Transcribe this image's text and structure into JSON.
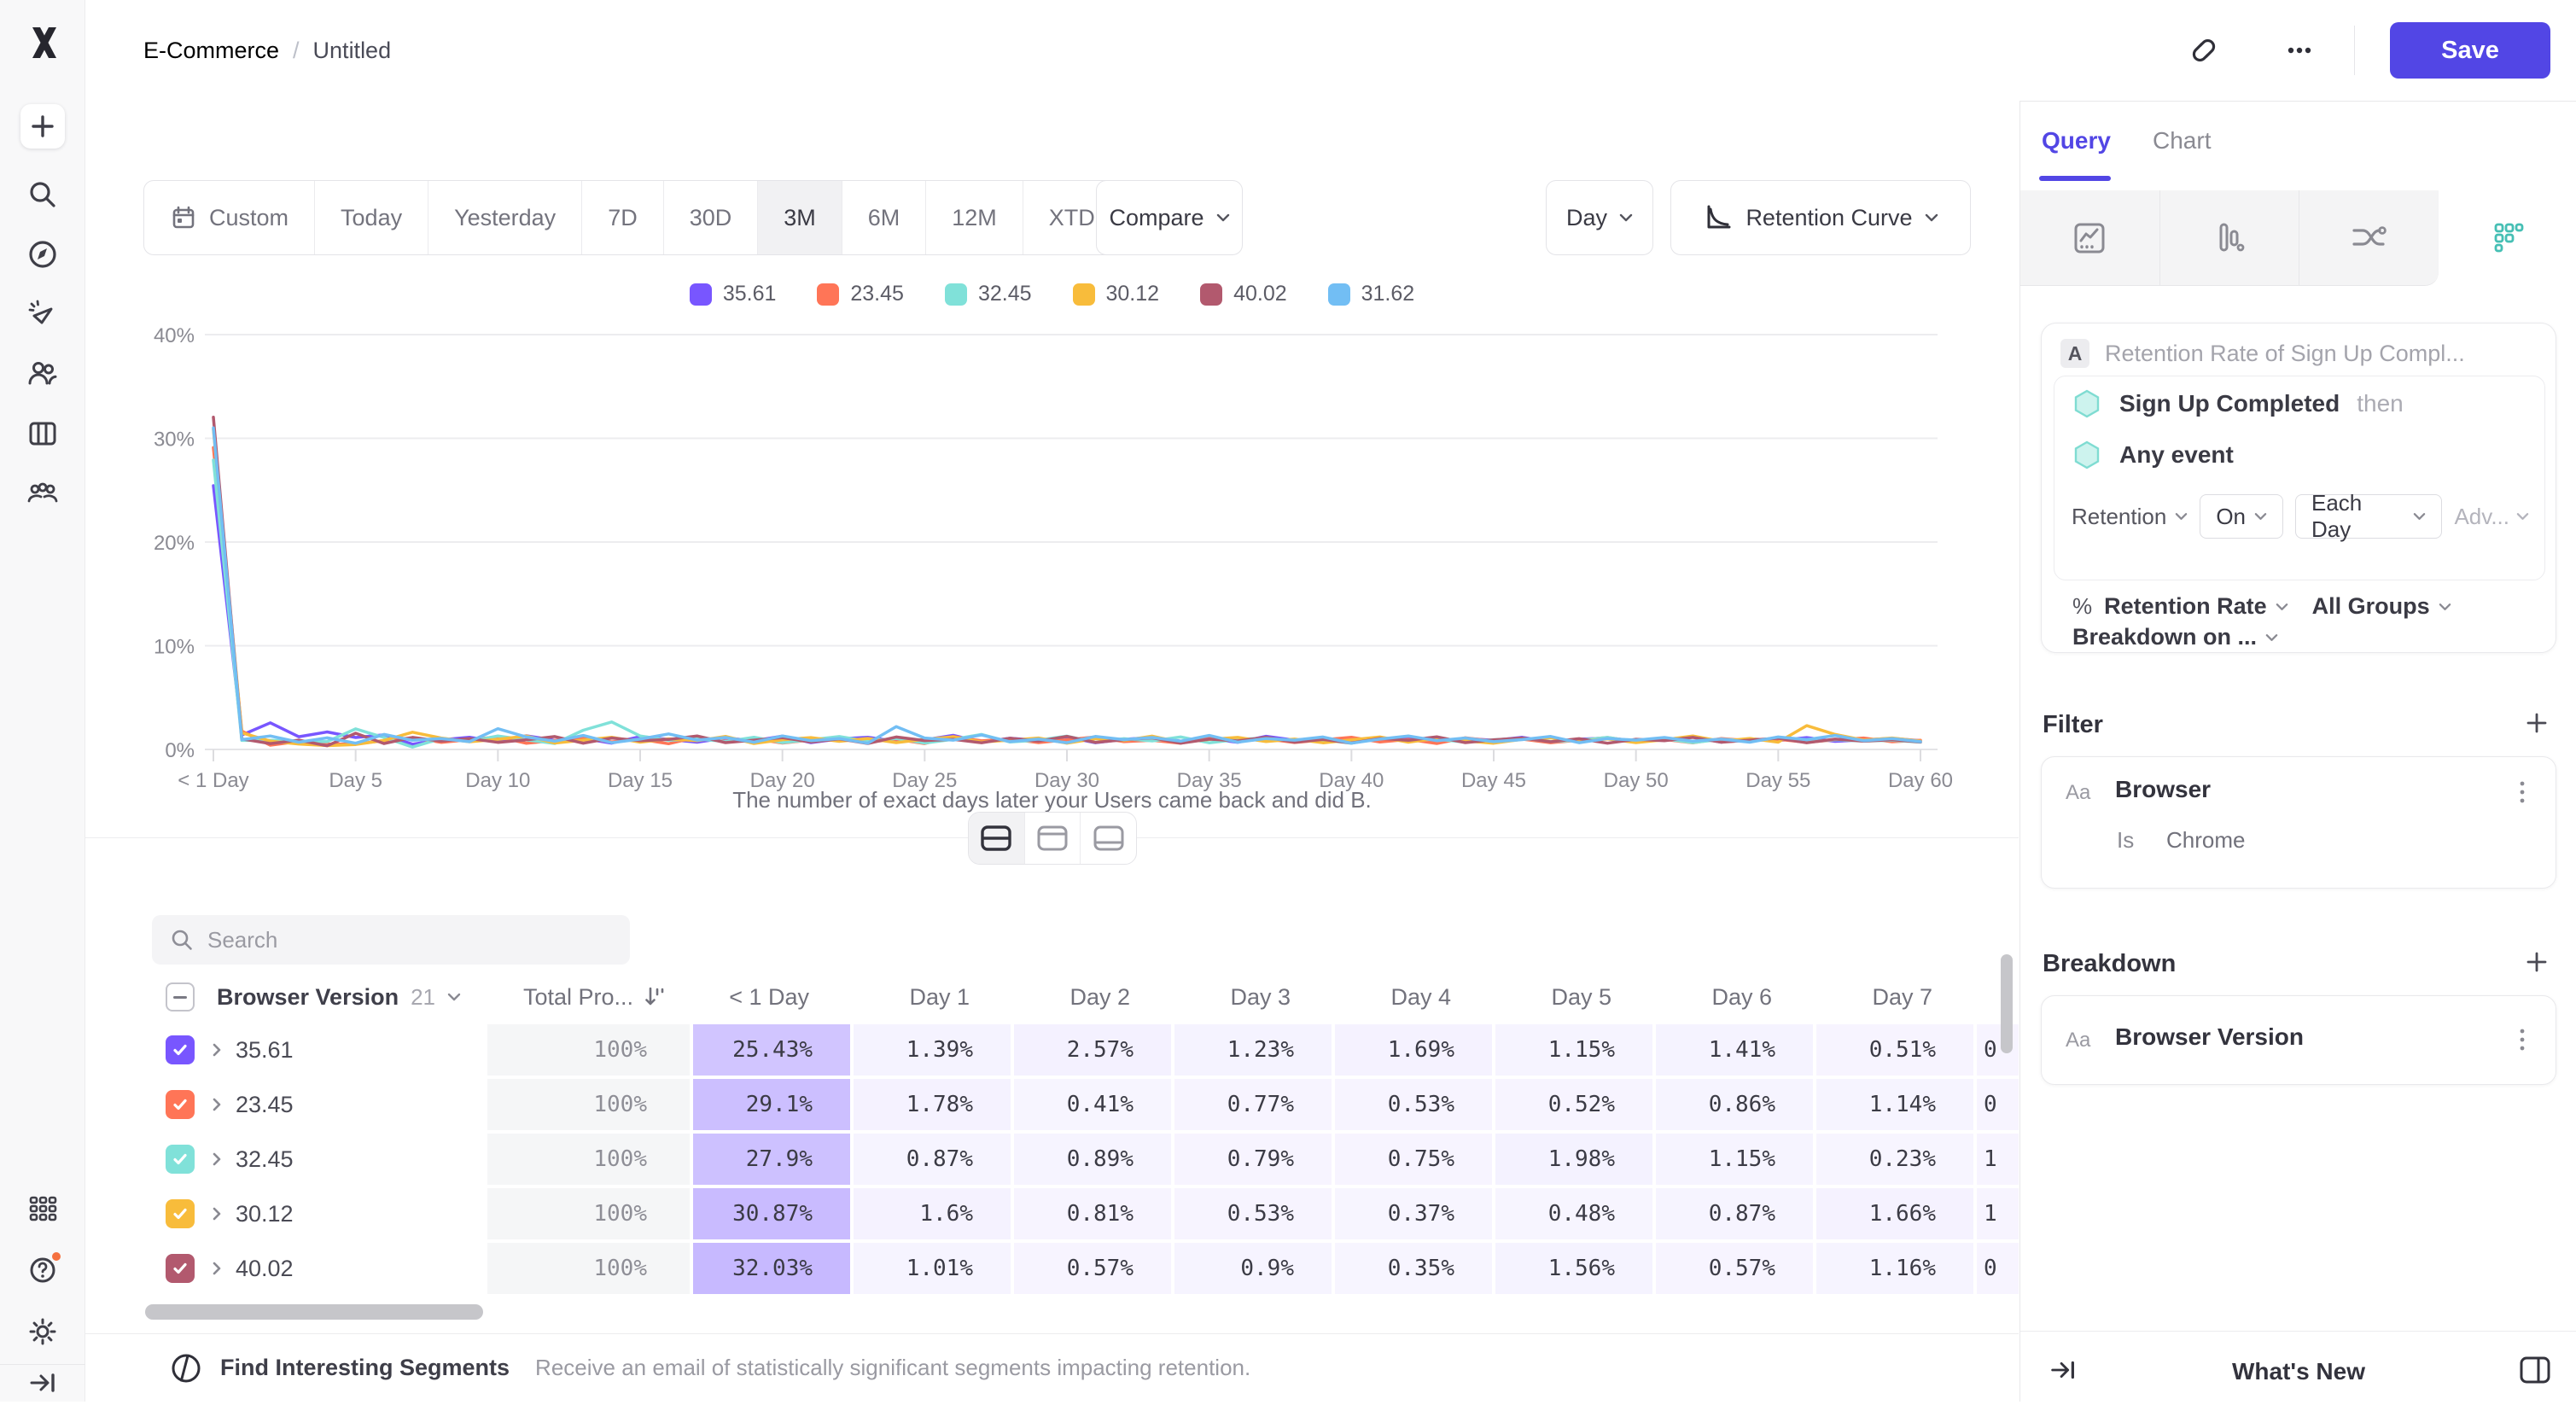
{
  "topbar": {
    "project": "E-Commerce",
    "separator": "/",
    "report": "Untitled",
    "save": "Save"
  },
  "toolbar": {
    "ranges": [
      "Custom",
      "Today",
      "Yesterday",
      "7D",
      "30D",
      "3M",
      "6M",
      "12M",
      "XTD"
    ],
    "selected": "3M",
    "compare": "Compare",
    "granularity": "Day",
    "chart_type": "Retention Curve"
  },
  "chart_data": {
    "type": "line",
    "x_count": 61,
    "x_first_label": "< 1 Day",
    "x_label_prefix": "Day",
    "x_tick_every": 5,
    "ylim": [
      0,
      40
    ],
    "yticks": [
      "0%",
      "10%",
      "20%",
      "30%",
      "40%"
    ],
    "grid": true,
    "legend_position": "top",
    "series": [
      {
        "name": "35.61",
        "color": "#7856FF",
        "values": [
          25.43,
          1.39,
          2.57,
          1.23,
          1.69,
          1.15,
          1.41,
          0.51,
          0.92,
          1.18,
          0.73,
          1.32,
          0.88,
          1.05,
          0.61,
          1.24,
          0.97,
          0.7,
          1.11,
          0.84,
          1.29,
          0.66,
          1.02,
          1.18,
          0.79,
          0.93,
          1.36,
          0.71,
          1.08,
          0.87,
          1.22,
          0.64,
          0.98,
          1.15,
          0.81,
          1.04,
          0.69,
          1.27,
          0.9,
          1.12,
          0.76,
          0.95,
          1.21,
          0.68,
          1.06,
          0.88,
          1.17,
          0.74,
          0.99,
          1.1,
          0.82,
          0.96,
          1.2,
          0.7,
          1.03,
          0.86,
          1.14,
          0.78,
          0.92,
          1.07,
          0.85
        ]
      },
      {
        "name": "23.45",
        "color": "#FF7557",
        "values": [
          29.1,
          1.78,
          0.41,
          0.77,
          0.53,
          0.52,
          0.86,
          1.14,
          0.68,
          0.95,
          1.22,
          0.59,
          0.87,
          1.1,
          0.73,
          0.98,
          0.55,
          1.19,
          0.8,
          1.04,
          0.62,
          0.91,
          1.16,
          0.7,
          0.99,
          0.57,
          1.25,
          0.83,
          1.01,
          0.66,
          0.94,
          1.2,
          0.75,
          0.88,
          0.6,
          1.08,
          0.79,
          1.02,
          0.67,
          0.93,
          1.18,
          0.72,
          0.97,
          0.58,
          1.12,
          0.81,
          1.0,
          0.65,
          0.9,
          1.15,
          0.76,
          0.96,
          0.63,
          1.05,
          0.84,
          0.98,
          0.69,
          0.92,
          1.1,
          0.74,
          0.89
        ]
      },
      {
        "name": "32.45",
        "color": "#80E1D9",
        "values": [
          27.9,
          0.87,
          0.89,
          0.79,
          0.75,
          1.98,
          1.15,
          0.23,
          1.05,
          0.78,
          1.3,
          0.92,
          0.58,
          1.85,
          2.65,
          1.3,
          0.88,
          1.02,
          0.76,
          1.18,
          0.66,
          0.94,
          1.24,
          0.8,
          1.06,
          0.62,
          0.98,
          1.45,
          0.72,
          0.9,
          1.28,
          0.68,
          1.04,
          0.82,
          1.2,
          0.64,
          0.96,
          1.1,
          0.78,
          0.92,
          0.6,
          1.14,
          0.86,
          1.0,
          0.7,
          0.94,
          1.08,
          0.76,
          0.88,
          1.16,
          0.74,
          1.02,
          0.66,
          0.98,
          0.84,
          1.12,
          0.72,
          0.95,
          0.8,
          0.88,
          0.7
        ]
      },
      {
        "name": "30.12",
        "color": "#F8BC3B",
        "values": [
          30.87,
          1.6,
          0.81,
          0.53,
          0.37,
          0.48,
          0.87,
          1.66,
          1.1,
          0.74,
          0.98,
          1.3,
          0.62,
          0.9,
          1.18,
          0.7,
          1.02,
          0.84,
          1.26,
          0.58,
          0.94,
          1.14,
          0.78,
          1.06,
          0.66,
          0.98,
          1.22,
          0.72,
          0.9,
          1.1,
          0.6,
          1.04,
          0.86,
          1.28,
          0.68,
          0.96,
          1.16,
          0.76,
          1.0,
          0.64,
          0.92,
          1.2,
          0.7,
          1.08,
          0.82,
          0.6,
          0.98,
          1.12,
          0.74,
          1.02,
          0.66,
          0.94,
          1.3,
          0.78,
          1.06,
          0.7,
          2.3,
          1.45,
          0.9,
          1.1,
          0.8
        ]
      },
      {
        "name": "40.02",
        "color": "#B2596E",
        "values": [
          32.03,
          1.01,
          0.57,
          0.9,
          0.35,
          1.56,
          0.57,
          1.16,
          0.8,
          1.05,
          0.68,
          0.92,
          1.24,
          0.6,
          1.1,
          0.84,
          0.96,
          1.3,
          0.66,
          0.9,
          1.14,
          0.72,
          1.02,
          0.58,
          1.2,
          0.86,
          0.98,
          0.64,
          1.08,
          0.8,
          1.26,
          0.68,
          0.94,
          1.12,
          0.6,
          1.0,
          0.82,
          1.18,
          0.7,
          0.96,
          0.62,
          1.06,
          0.88,
          1.22,
          0.66,
          0.92,
          1.1,
          0.74,
          1.04,
          0.6,
          0.98,
          0.84,
          1.16,
          0.7,
          0.9,
          1.08,
          0.64,
          1.0,
          0.8,
          0.94,
          0.72
        ]
      },
      {
        "name": "31.62",
        "color": "#72BEF4",
        "values": [
          31.0,
          0.95,
          1.3,
          0.7,
          1.12,
          0.6,
          1.45,
          0.88,
          1.05,
          0.75,
          2.0,
          1.2,
          0.8,
          1.35,
          0.65,
          1.0,
          1.5,
          0.9,
          1.15,
          0.7,
          1.3,
          0.85,
          1.05,
          0.6,
          2.2,
          1.1,
          0.9,
          1.4,
          0.75,
          1.0,
          0.65,
          1.25,
          0.95,
          1.15,
          0.8,
          1.35,
          0.7,
          1.05,
          0.9,
          1.2,
          0.6,
          1.0,
          1.3,
          0.85,
          1.1,
          0.75,
          0.95,
          1.25,
          0.65,
          1.05,
          0.9,
          1.15,
          0.8,
          1.0,
          0.7,
          1.2,
          0.95,
          1.35,
          0.85,
          1.05,
          0.75
        ]
      }
    ]
  },
  "caption": "The number of exact days later your Users came back and did B.",
  "search": {
    "placeholder": "Search"
  },
  "table": {
    "group": "Browser Version",
    "count": "21",
    "total_header": "Total Pro...",
    "day_headers": [
      "< 1 Day",
      "Day 1",
      "Day 2",
      "Day 3",
      "Day 4",
      "Day 5",
      "Day 6",
      "Day 7"
    ],
    "rows": [
      {
        "name": "35.61",
        "color": "#7856FF",
        "total": "100%",
        "values": [
          "25.43%",
          "1.39%",
          "2.57%",
          "1.23%",
          "1.69%",
          "1.15%",
          "1.41%",
          "0.51%"
        ],
        "partial": "0"
      },
      {
        "name": "23.45",
        "color": "#FF7557",
        "total": "100%",
        "values": [
          "29.1%",
          "1.78%",
          "0.41%",
          "0.77%",
          "0.53%",
          "0.52%",
          "0.86%",
          "1.14%"
        ],
        "partial": "0"
      },
      {
        "name": "32.45",
        "color": "#80E1D9",
        "total": "100%",
        "values": [
          "27.9%",
          "0.87%",
          "0.89%",
          "0.79%",
          "0.75%",
          "1.98%",
          "1.15%",
          "0.23%"
        ],
        "partial": "1"
      },
      {
        "name": "30.12",
        "color": "#F8BC3B",
        "total": "100%",
        "values": [
          "30.87%",
          "1.6%",
          "0.81%",
          "0.53%",
          "0.37%",
          "0.48%",
          "0.87%",
          "1.66%"
        ],
        "partial": "1"
      },
      {
        "name": "40.02",
        "color": "#B2596E",
        "total": "100%",
        "values": [
          "32.03%",
          "1.01%",
          "0.57%",
          "0.9%",
          "0.35%",
          "1.56%",
          "0.57%",
          "1.16%"
        ],
        "partial": "0"
      }
    ]
  },
  "footer": {
    "title": "Find Interesting Segments",
    "description": "Receive an email of statistically significant segments impacting retention."
  },
  "panel": {
    "tabs": [
      "Query",
      "Chart"
    ],
    "active_tab": "Query",
    "query": {
      "step_letter": "A",
      "step_title": "Retention Rate of Sign Up Compl...",
      "first_event": "Sign Up Completed",
      "then_label": "then",
      "return_event": "Any event",
      "mode": "Retention",
      "on_label": "On",
      "bucket": "Each Day",
      "advanced": "Adv...",
      "percent": "%",
      "measure": "Retention Rate",
      "groups": "All Groups",
      "breakdown_on": "Breakdown on ..."
    },
    "filter": {
      "heading": "Filter",
      "type_badge": "Aa",
      "property": "Browser",
      "operator": "Is",
      "value": "Chrome"
    },
    "breakdown": {
      "heading": "Breakdown",
      "type_badge": "Aa",
      "property": "Browser Version"
    },
    "whats_new": "What's New"
  },
  "colors": {
    "accent": "#5246E5",
    "heat_base": "#7856FF",
    "event_hex_fill": "#CDF3EE",
    "event_hex_stroke": "#7FDCD2"
  }
}
